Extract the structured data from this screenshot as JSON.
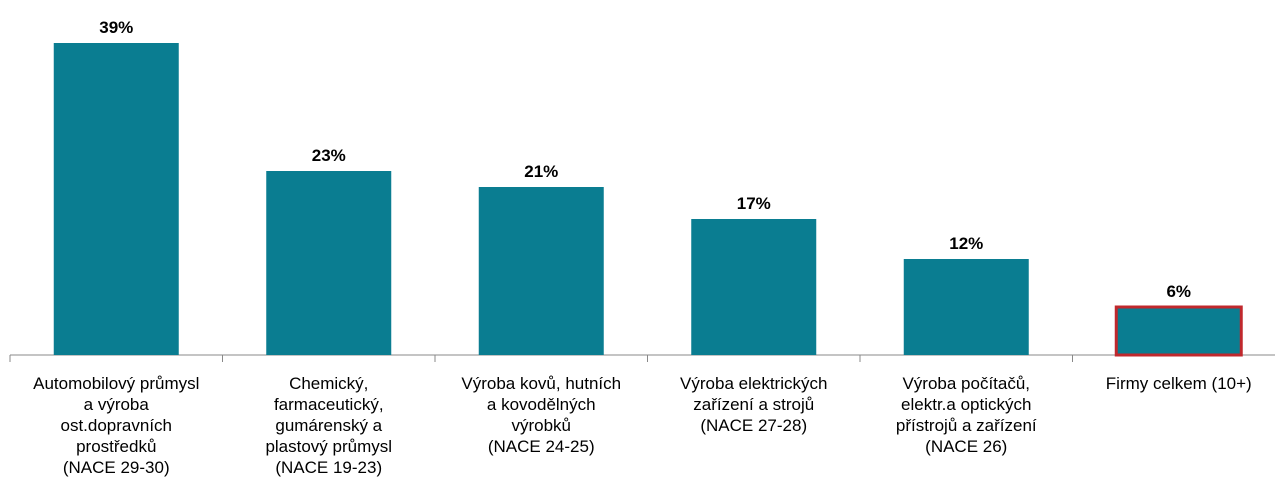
{
  "chart_data": {
    "type": "bar",
    "categories": [
      [
        "Automobilový průmysl",
        "a výroba",
        "ost.dopravních",
        "prostředků",
        "(NACE 29-30)"
      ],
      [
        "Chemický,",
        "farmaceutický,",
        "gumárenský a",
        "plastový průmysl",
        "(NACE 19-23)"
      ],
      [
        "Výroba kovů, hutních",
        "a kovodělných",
        "výrobků",
        "(NACE 24-25)"
      ],
      [
        "Výroba elektrických",
        "zařízení a strojů",
        "(NACE 27-28)"
      ],
      [
        "Výroba počítačů,",
        "elektr.a optických",
        "přístrojů a zařízení",
        "(NACE 26)"
      ],
      [
        "Firmy celkem (10+)"
      ]
    ],
    "values": [
      39,
      23,
      21,
      17,
      12,
      6
    ],
    "value_labels": [
      "39%",
      "23%",
      "21%",
      "17%",
      "12%",
      "6%"
    ],
    "color": "#0a7d91",
    "edge_colors": [
      null,
      null,
      null,
      null,
      null,
      "#c0282d"
    ],
    "ylim": [
      0,
      40
    ]
  }
}
